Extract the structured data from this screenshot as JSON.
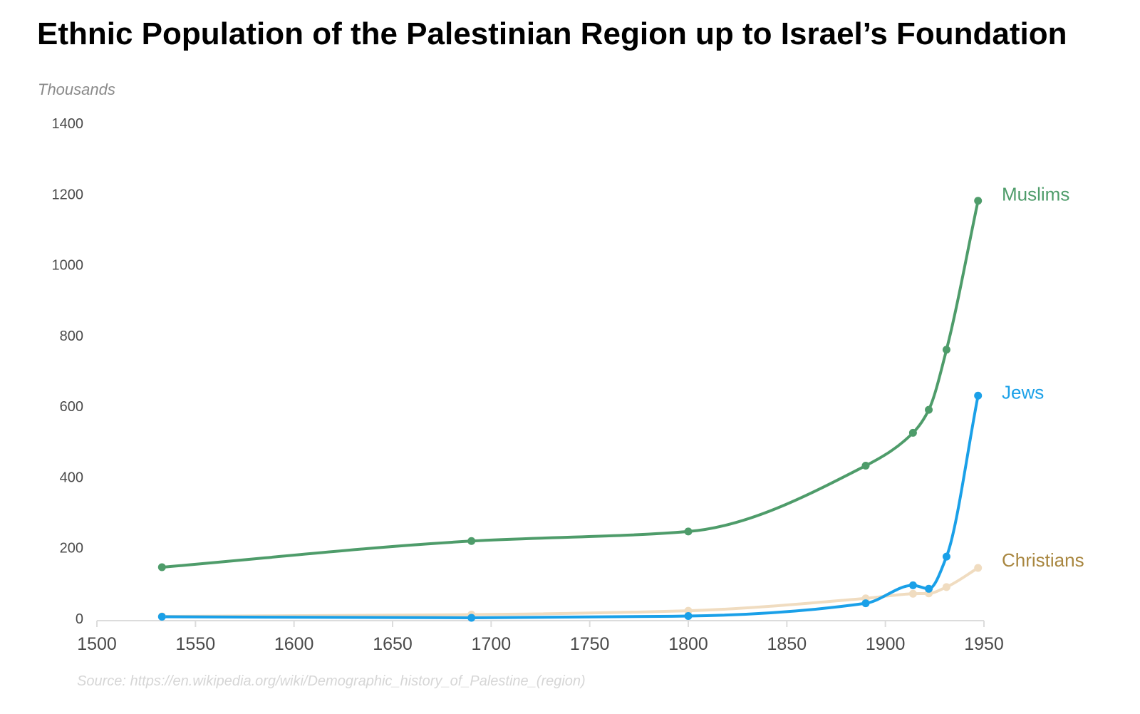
{
  "chart_data": {
    "type": "line",
    "title": "Ethnic Population of the Palestinian Region up to Israel’s Foundation",
    "ylabel": "Thousands",
    "xlabel": "",
    "xlim": [
      1500,
      1950
    ],
    "ylim": [
      0,
      1400
    ],
    "x_ticks": [
      "1500",
      "1550",
      "1600",
      "1650",
      "1700",
      "1750",
      "1800",
      "1850",
      "1900",
      "1950"
    ],
    "y_ticks": [
      "0",
      "200",
      "400",
      "600",
      "800",
      "1000",
      "1200",
      "1400"
    ],
    "grid": false,
    "legend": "inline labels at line ends (right)",
    "source": "Source: https://en.wikipedia.org/wiki/Demographic_history_of_Palestine_(region)",
    "series": [
      {
        "name": "Muslims",
        "color": "#4e9c6a",
        "x": [
          1533,
          1690,
          1800,
          1890,
          1914,
          1922,
          1931,
          1947
        ],
        "values": [
          145,
          219,
          246,
          432,
          525,
          590,
          760,
          1181
        ]
      },
      {
        "name": "Jews",
        "color": "#1aa0e8",
        "x": [
          1533,
          1690,
          1800,
          1890,
          1914,
          1922,
          1931,
          1947
        ],
        "values": [
          5,
          2,
          7,
          43,
          94,
          84,
          175,
          630
        ]
      },
      {
        "name": "Christians",
        "color": "#f0dcc0",
        "x": [
          1533,
          1690,
          1800,
          1890,
          1914,
          1922,
          1931,
          1947
        ],
        "values": [
          6,
          11,
          22,
          57,
          70,
          71,
          89,
          143
        ]
      }
    ],
    "label_colors": {
      "Muslims": "#4e9c6a",
      "Jews": "#1aa0e8",
      "Christians": "#a8863f"
    }
  }
}
